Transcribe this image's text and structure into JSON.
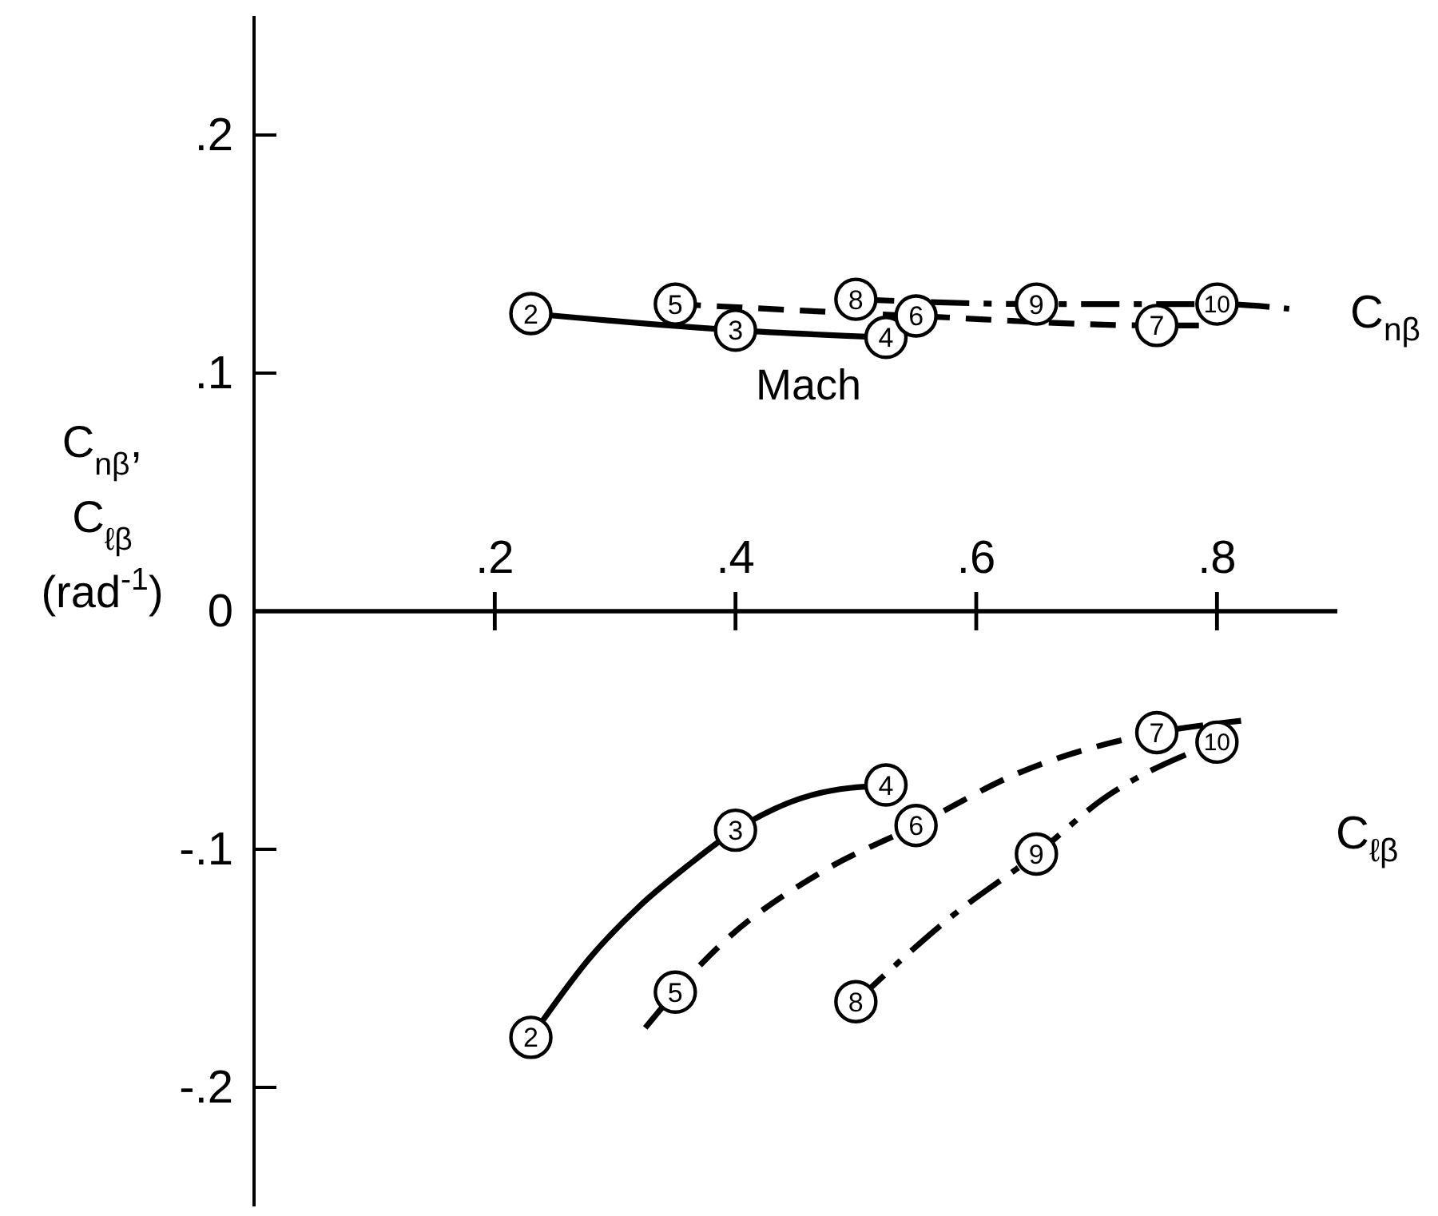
{
  "chart_data": {
    "type": "line",
    "xlabel": "Mach",
    "ylabel": "C$_{nβ}$, C$_{ℓβ}$ (rad$^{-1}$)",
    "xlim": [
      0,
      0.9
    ],
    "ylim": [
      -0.25,
      0.25
    ],
    "xticks": [
      {
        "value": 0.2,
        "label": ".2"
      },
      {
        "value": 0.4,
        "label": ".4"
      },
      {
        "value": 0.6,
        "label": ".6"
      },
      {
        "value": 0.8,
        "label": ".8"
      }
    ],
    "yticks": [
      {
        "value": -0.2,
        "label": "-.2"
      },
      {
        "value": -0.1,
        "label": "-.1"
      },
      0,
      {
        "value": 0.1,
        "label": ".1"
      },
      {
        "value": 0.2,
        "label": ".2"
      }
    ],
    "series": [
      {
        "color": "#000000",
        "line_style": "solid",
        "x": [
          0.23,
          0.4,
          0.525
        ],
        "values": [
          0.125,
          0.118,
          0.115
        ]
      },
      {
        "color": "#000000",
        "line_style": "dashed",
        "x": [
          0.35,
          0.55,
          0.75,
          0.79
        ],
        "values": [
          0.129,
          0.124,
          0.12,
          0.12
        ]
      },
      {
        "color": "#000000",
        "line_style": "dashdot",
        "x": [
          0.5,
          0.65,
          0.8,
          0.86
        ],
        "values": [
          0.131,
          0.129,
          0.129,
          0.127
        ]
      },
      {
        "color": "#000000",
        "line_style": "solid",
        "x": [
          0.23,
          0.28,
          0.32,
          0.36,
          0.4,
          0.465,
          0.525
        ],
        "values": [
          -0.179,
          -0.145,
          -0.124,
          -0.107,
          -0.092,
          -0.077,
          -0.073
        ]
      },
      {
        "color": "#000000",
        "line_style": "dashed",
        "x": [
          0.325,
          0.35,
          0.39,
          0.47,
          0.55,
          0.635,
          0.75,
          0.82
        ],
        "values": [
          -0.175,
          -0.16,
          -0.139,
          -0.11,
          -0.09,
          -0.068,
          -0.051,
          -0.046
        ]
      },
      {
        "color": "#000000",
        "line_style": "dashdot",
        "x": [
          0.5,
          0.58,
          0.65,
          0.705,
          0.8
        ],
        "values": [
          -0.164,
          -0.128,
          -0.102,
          -0.079,
          -0.055
        ]
      },
      {
        "type": "scatter",
        "color": "#000000",
        "marker": "circle",
        "x": [
          0.23,
          0.4,
          0.525,
          0.35,
          0.55,
          0.75,
          0.5,
          0.65,
          0.8
        ],
        "values": [
          0.125,
          0.118,
          0.115,
          0.129,
          0.124,
          0.12,
          0.131,
          0.129,
          0.129
        ]
      },
      {
        "type": "scatter",
        "color": "#000000",
        "marker": "circle",
        "x": [
          0.23,
          0.4,
          0.525,
          0.35,
          0.55,
          0.75,
          0.5,
          0.65,
          0.8
        ],
        "values": [
          -0.179,
          -0.092,
          -0.073,
          -0.16,
          -0.09,
          -0.051,
          -0.164,
          -0.102,
          -0.055
        ]
      }
    ],
    "annotations": [
      {
        "text": "2",
        "x": 0.23,
        "y": 0.125
      },
      {
        "text": "3",
        "x": 0.4,
        "y": 0.118
      },
      {
        "text": "4",
        "x": 0.525,
        "y": 0.115
      },
      {
        "text": "5",
        "x": 0.35,
        "y": 0.129
      },
      {
        "text": "6",
        "x": 0.55,
        "y": 0.124
      },
      {
        "text": "7",
        "x": 0.75,
        "y": 0.12
      },
      {
        "text": "8",
        "x": 0.5,
        "y": 0.131
      },
      {
        "text": "9",
        "x": 0.65,
        "y": 0.129
      },
      {
        "text": "10",
        "x": 0.8,
        "y": 0.129
      },
      {
        "text": "2",
        "x": 0.23,
        "y": -0.179
      },
      {
        "text": "3",
        "x": 0.4,
        "y": -0.092
      },
      {
        "text": "4",
        "x": 0.525,
        "y": -0.073
      },
      {
        "text": "5",
        "x": 0.35,
        "y": -0.16
      },
      {
        "text": "6",
        "x": 0.55,
        "y": -0.09
      },
      {
        "text": "7",
        "x": 0.75,
        "y": -0.051
      },
      {
        "text": "8",
        "x": 0.5,
        "y": -0.164
      },
      {
        "text": "9",
        "x": 0.65,
        "y": -0.102
      },
      {
        "text": "10",
        "x": 0.8,
        "y": -0.055
      },
      "C$_{nβ}$",
      "C$_{ℓβ}$"
    ]
  }
}
